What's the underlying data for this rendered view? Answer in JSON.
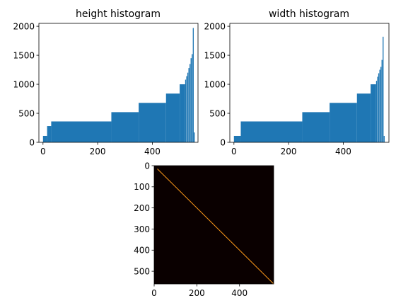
{
  "chart_data": [
    {
      "type": "bar",
      "title": "height histogram",
      "xlim": [
        -15,
        567
      ],
      "ylim": [
        0,
        2050
      ],
      "xticks": [
        0,
        200,
        400
      ],
      "yticks": [
        0,
        500,
        1000,
        1500,
        2000
      ],
      "bar_color": "#1f77b4",
      "segments": [
        {
          "x0": 0,
          "x1": 15,
          "y": 110
        },
        {
          "x0": 15,
          "x1": 30,
          "y": 280
        },
        {
          "x0": 30,
          "x1": 250,
          "y": 360
        },
        {
          "x0": 250,
          "x1": 350,
          "y": 520
        },
        {
          "x0": 350,
          "x1": 450,
          "y": 680
        },
        {
          "x0": 450,
          "x1": 500,
          "y": 840
        },
        {
          "x0": 500,
          "x1": 520,
          "y": 1000
        }
      ],
      "tail": [
        {
          "x": 520,
          "y": 1080
        },
        {
          "x": 524,
          "y": 1140
        },
        {
          "x": 528,
          "y": 1200
        },
        {
          "x": 532,
          "y": 1280
        },
        {
          "x": 536,
          "y": 1350
        },
        {
          "x": 540,
          "y": 1450
        },
        {
          "x": 544,
          "y": 1520
        },
        {
          "x": 548,
          "y": 1970
        },
        {
          "x": 552,
          "y": 170
        }
      ]
    },
    {
      "type": "bar",
      "title": "width histogram",
      "xlim": [
        -15,
        567
      ],
      "ylim": [
        0,
        2050
      ],
      "xticks": [
        0,
        200,
        400
      ],
      "yticks": [
        0,
        500,
        1000,
        1500,
        2000
      ],
      "bar_color": "#1f77b4",
      "segments": [
        {
          "x0": 0,
          "x1": 25,
          "y": 110
        },
        {
          "x0": 25,
          "x1": 250,
          "y": 360
        },
        {
          "x0": 250,
          "x1": 350,
          "y": 520
        },
        {
          "x0": 350,
          "x1": 450,
          "y": 680
        },
        {
          "x0": 450,
          "x1": 500,
          "y": 840
        },
        {
          "x0": 500,
          "x1": 520,
          "y": 1000
        }
      ],
      "tail": [
        {
          "x": 520,
          "y": 1060
        },
        {
          "x": 524,
          "y": 1130
        },
        {
          "x": 528,
          "y": 1190
        },
        {
          "x": 532,
          "y": 1250
        },
        {
          "x": 536,
          "y": 1300
        },
        {
          "x": 540,
          "y": 1420
        },
        {
          "x": 544,
          "y": 1820
        },
        {
          "x": 548,
          "y": 110
        }
      ]
    },
    {
      "type": "heatmap",
      "title": "",
      "xlim": [
        0,
        560
      ],
      "ylim": [
        0,
        560
      ],
      "y_inverted": true,
      "xticks": [
        0,
        200,
        400
      ],
      "yticks": [
        0,
        100,
        200,
        300,
        400,
        500
      ],
      "colormap": "hot",
      "background_color": "#0a0000",
      "diagonal": {
        "from": 15,
        "to": 560,
        "color": "#ff9a1a"
      }
    }
  ]
}
